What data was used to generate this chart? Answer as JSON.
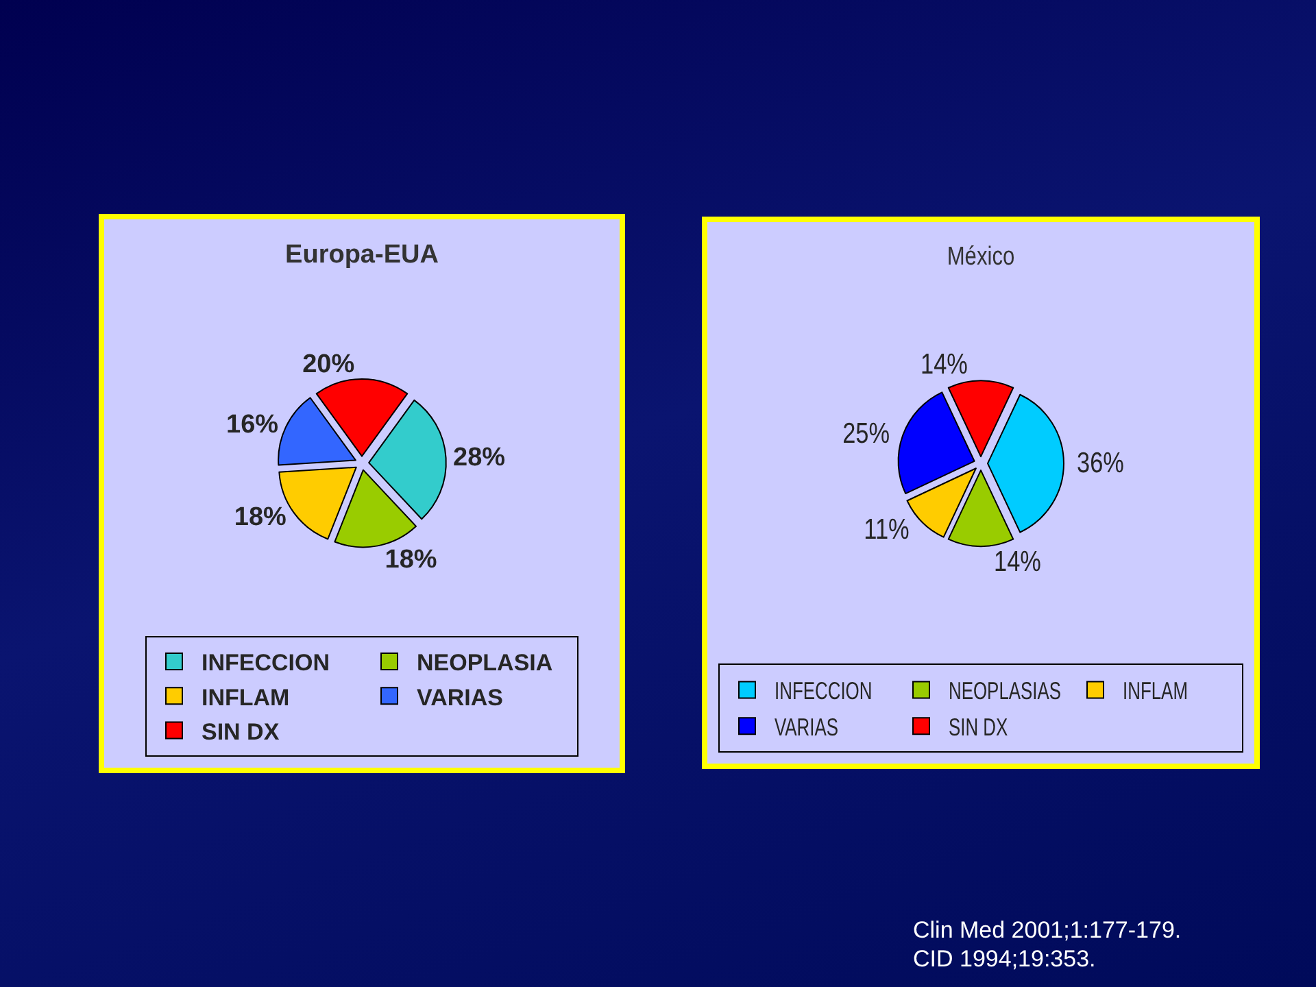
{
  "chart_data": [
    {
      "type": "pie",
      "title": "Europa-EUA",
      "categories": [
        "INFECCION",
        "NEOPLASIA",
        "INFLAM",
        "VARIAS",
        "SIN DX"
      ],
      "values": [
        28,
        18,
        18,
        16,
        20
      ],
      "colors": [
        "#33cccc",
        "#99cc00",
        "#ffcc00",
        "#3366ff",
        "#ff0000"
      ],
      "value_labels": [
        "28%",
        "18%",
        "18%",
        "16%",
        "20%"
      ],
      "legend": "bottom"
    },
    {
      "type": "pie",
      "title": "México",
      "categories": [
        "INFECCION",
        "NEOPLASIAS",
        "INFLAM",
        "VARIAS",
        "SIN DX"
      ],
      "values": [
        36,
        14,
        11,
        25,
        14
      ],
      "colors": [
        "#00ccff",
        "#99cc00",
        "#ffcc00",
        "#0000ff",
        "#ff0000"
      ],
      "value_labels": [
        "36%",
        "14%",
        "11%",
        "25%",
        "14%"
      ],
      "legend": "bottom",
      "annotations": [
        "Clin Med 2001;1:177-179.\nCID 1994;19:353."
      ]
    }
  ]
}
